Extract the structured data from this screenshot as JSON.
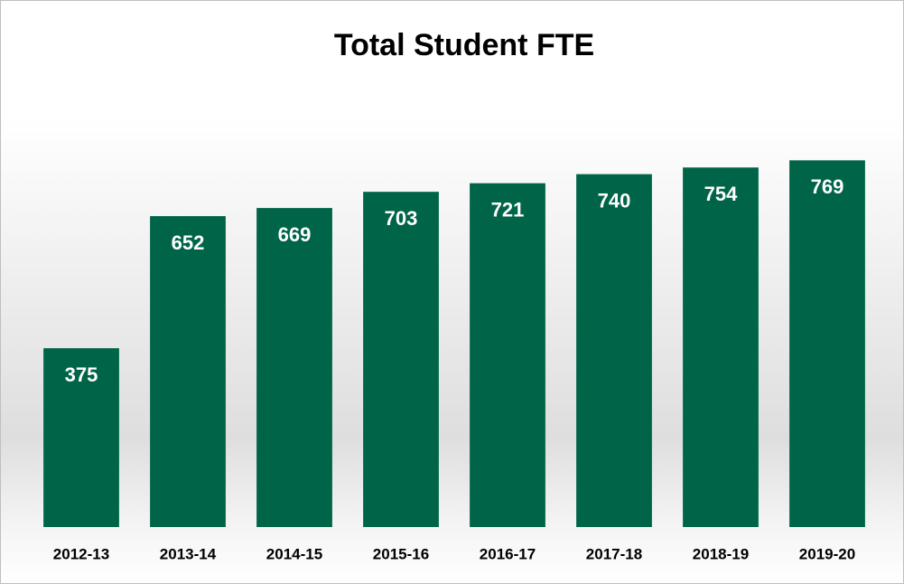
{
  "chart_data": {
    "type": "bar",
    "title": "Total Student FTE",
    "categories": [
      "2012-13",
      "2013-14",
      "2014-15",
      "2015-16",
      "2016-17",
      "2017-18",
      "2018-19",
      "2019-20"
    ],
    "values": [
      375,
      652,
      669,
      703,
      721,
      740,
      754,
      769
    ],
    "color": "#006548",
    "ylim": [
      0,
      800
    ]
  }
}
